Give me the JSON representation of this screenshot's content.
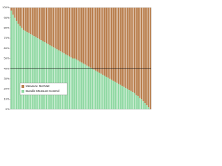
{
  "chart_data": {
    "type": "stacked-bar",
    "categories": [
      null,
      null,
      null,
      null,
      null,
      null,
      null,
      null,
      null,
      null,
      null,
      null,
      null,
      null,
      null,
      null,
      null,
      null,
      null,
      null,
      null,
      null,
      null,
      null,
      null,
      null,
      null,
      null,
      null,
      null,
      null,
      null,
      null,
      null,
      null,
      null,
      null,
      null,
      null,
      null,
      null,
      null,
      null,
      null,
      null,
      null,
      null,
      null,
      null,
      null,
      null,
      null,
      null,
      null,
      null,
      null,
      null,
      null,
      null,
      null,
      null,
      null,
      null,
      null,
      null,
      null,
      null,
      null,
      null,
      null,
      null,
      null,
      null,
      null,
      null,
      null,
      null,
      null,
      null,
      null
    ],
    "series": [
      {
        "name": "Bundle Measure Control",
        "color": "#8fd8a2",
        "values": [
          97,
          93,
          90,
          87,
          84,
          82,
          80,
          78,
          77,
          76,
          75,
          74,
          73,
          72,
          71,
          70,
          69,
          68,
          67,
          66,
          65,
          64,
          63,
          62,
          61,
          60,
          59,
          58,
          57,
          56,
          55,
          54,
          53,
          52,
          51,
          50,
          50,
          49,
          48,
          47,
          46,
          45,
          44,
          43,
          42,
          41,
          40,
          39,
          38,
          37,
          36,
          35,
          34,
          33,
          32,
          31,
          30,
          29,
          28,
          27,
          26,
          25,
          24,
          23,
          22,
          21,
          20,
          19,
          18,
          17,
          16,
          14,
          13,
          11,
          10,
          8,
          6,
          4,
          2,
          0
        ]
      },
      {
        "name": "Measure Not Met",
        "color": "#b87d4b",
        "values": [
          3,
          7,
          10,
          13,
          16,
          18,
          20,
          22,
          23,
          24,
          25,
          26,
          27,
          28,
          29,
          30,
          31,
          32,
          33,
          34,
          35,
          36,
          37,
          38,
          39,
          40,
          41,
          42,
          43,
          44,
          45,
          46,
          47,
          48,
          49,
          50,
          50,
          51,
          52,
          53,
          54,
          55,
          56,
          57,
          58,
          59,
          60,
          61,
          62,
          63,
          64,
          65,
          66,
          67,
          68,
          69,
          70,
          71,
          72,
          73,
          74,
          75,
          76,
          77,
          78,
          79,
          80,
          81,
          82,
          83,
          84,
          86,
          87,
          89,
          90,
          92,
          94,
          96,
          98,
          100
        ]
      }
    ],
    "reference_line": 40,
    "ylim": [
      0,
      100
    ],
    "yticks": [
      {
        "value": 0,
        "label": "0%"
      },
      {
        "value": 10,
        "label": "10%"
      },
      {
        "value": 20,
        "label": "20%"
      },
      {
        "value": 30,
        "label": "30%"
      },
      {
        "value": 40,
        "label": "40%"
      },
      {
        "value": 50,
        "label": "50%"
      },
      {
        "value": 60,
        "label": "60%"
      },
      {
        "value": 70,
        "label": "70%"
      },
      {
        "value": 80,
        "label": "80%"
      },
      {
        "value": 90,
        "label": "90%"
      },
      {
        "value": 100,
        "label": "100%"
      }
    ],
    "legend": "lower-left"
  }
}
